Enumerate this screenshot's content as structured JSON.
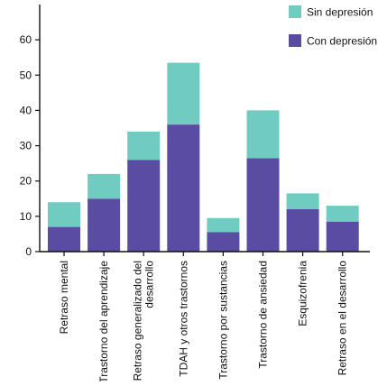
{
  "chart_data": {
    "type": "bar",
    "stacked": true,
    "categories": [
      "Retraso mental",
      "Trastorno del aprendizaje",
      "Retraso generalizado del desarrollo",
      "TDAH y otros trastornos",
      "Trastorno por sustancias",
      "Trastorno de ansiedad",
      "Esquizofrenia",
      "Retraso en el desarrollo"
    ],
    "category_lines": [
      [
        "Retraso mental"
      ],
      [
        "Trastorno del aprendizaje"
      ],
      [
        "Retraso generalizado del",
        "desarrollo"
      ],
      [
        "TDAH y otros trastornos"
      ],
      [
        "Trastorno por sustancias"
      ],
      [
        "Trastorno de ansiedad"
      ],
      [
        "Esquizofrenia"
      ],
      [
        "Retraso en el desarrollo"
      ]
    ],
    "series": [
      {
        "name": "Con depresión",
        "color": "#5a4ca3",
        "values": [
          7,
          15,
          26,
          36,
          5.5,
          26.5,
          12,
          8.5
        ]
      },
      {
        "name": "Sin depresión",
        "color": "#70ccc0",
        "values": [
          7,
          7,
          8,
          17.5,
          4,
          13.5,
          4.5,
          4.5
        ]
      }
    ],
    "legend_order": [
      "Sin depresión",
      "Con depresión"
    ],
    "ylim": [
      0,
      70
    ],
    "yticks": [
      0,
      10,
      20,
      30,
      40,
      50,
      60
    ],
    "grid": false,
    "legend_position": "top-right",
    "title": "",
    "xlabel": "",
    "ylabel": ""
  }
}
